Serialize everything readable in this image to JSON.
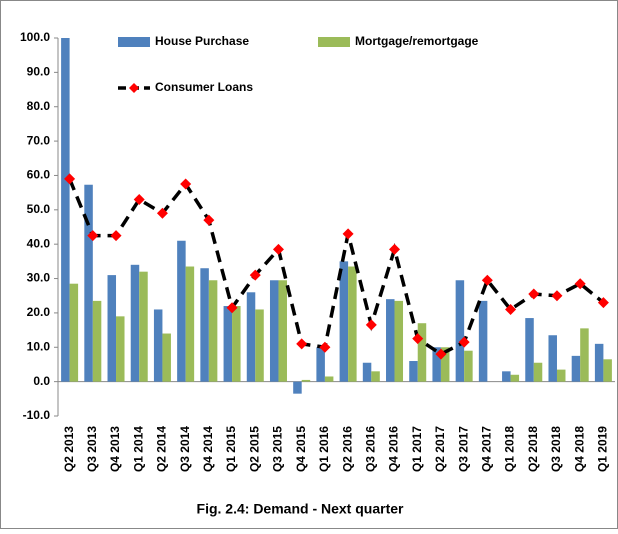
{
  "chart_data": {
    "type": "bar",
    "title": "Fig. 2.4: Demand - Next quarter",
    "categories": [
      "Q2 2013",
      "Q3 2013",
      "Q4 2013",
      "Q1 2014",
      "Q2 2014",
      "Q3 2014",
      "Q4 2014",
      "Q1 2015",
      "Q2 2015",
      "Q3 2015",
      "Q4 2015",
      "Q1 2016",
      "Q2 2016",
      "Q3 2016",
      "Q4 2016",
      "Q1 2017",
      "Q2 2017",
      "Q3 2017",
      "Q4 2017",
      "Q1 2018",
      "Q2 2018",
      "Q3 2018",
      "Q4 2018",
      "Q1 2019"
    ],
    "series": [
      {
        "name": "House Purchase",
        "type": "bar",
        "color": "#4f81bd",
        "values": [
          100,
          57.3,
          31,
          34,
          21,
          41,
          33,
          22,
          26,
          29.5,
          -3.5,
          10,
          35,
          5.5,
          24,
          6,
          10,
          29.5,
          23.5,
          3,
          18.5,
          13.5,
          7.5,
          11
        ]
      },
      {
        "name": "Mortgage/remortgage",
        "type": "bar",
        "color": "#9bbb59",
        "values": [
          28.5,
          23.5,
          19,
          32,
          14,
          33.5,
          29.5,
          22,
          21,
          29.5,
          0.5,
          1.5,
          33.5,
          3,
          23.5,
          17,
          10,
          9,
          0,
          2,
          5.5,
          3.5,
          15.5,
          6.5
        ]
      },
      {
        "name": "Consumer Loans",
        "type": "line",
        "color": "#000000",
        "marker_color": "#ff0000",
        "values": [
          59,
          42.5,
          42.5,
          53,
          49,
          57.5,
          47,
          21.5,
          31,
          38.5,
          11,
          10,
          43,
          16.5,
          38.5,
          12.5,
          8,
          11.5,
          29.5,
          21,
          25.5,
          25,
          28.5,
          23
        ]
      }
    ],
    "ylim": [
      -10,
      100
    ],
    "yticks": [
      {
        "value": -10,
        "label": "-10.0"
      },
      {
        "value": 0,
        "label": "0.0"
      },
      {
        "value": 10,
        "label": "10.0"
      },
      {
        "value": 20,
        "label": "20.0"
      },
      {
        "value": 30,
        "label": "30.0"
      },
      {
        "value": 40,
        "label": "40.0"
      },
      {
        "value": 50,
        "label": "50.0"
      },
      {
        "value": 60,
        "label": "60.0"
      },
      {
        "value": 70,
        "label": "70.0"
      },
      {
        "value": 80,
        "label": "80.0"
      },
      {
        "value": 90,
        "label": "90.0"
      },
      {
        "value": 100,
        "label": "100.0"
      }
    ],
    "grid": false
  }
}
